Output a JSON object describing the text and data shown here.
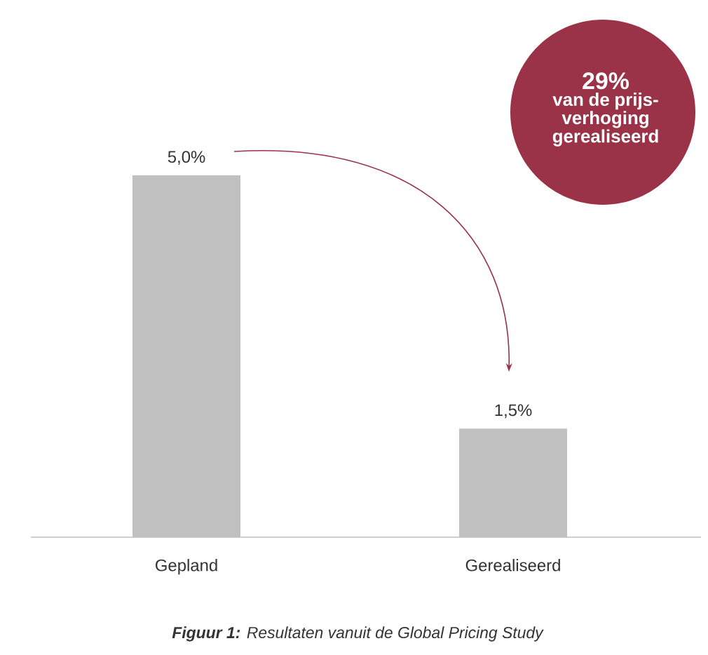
{
  "chart_data": {
    "type": "bar",
    "title": "**Figuur 1:** Resultaten vanuit de Global Pricing Study",
    "categories": [
      "Gepland",
      "Gerealiseerd"
    ],
    "values": [
      5.0,
      1.5
    ],
    "value_labels": [
      "5,0%",
      "1,5%"
    ],
    "color": "#c0c0c0",
    "annotations": [
      "29%",
      "van de prijs- verhoging gerealiseerd"
    ]
  }
}
